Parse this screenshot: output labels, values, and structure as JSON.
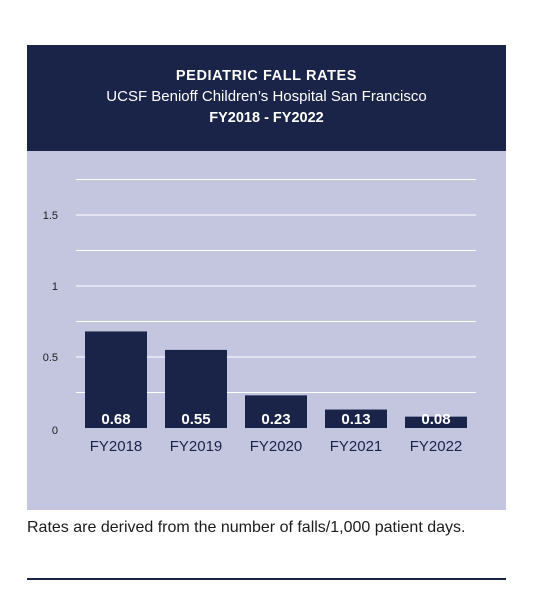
{
  "header": {
    "title": "PEDIATRIC FALL RATES",
    "subtitle": "UCSF Benioff Children’s Hospital San Francisco",
    "period": "FY2018 - FY2022"
  },
  "footnote": "Rates are derived from the number of falls/1,000 patient days.",
  "colors": {
    "navy": "#1a2348",
    "plot_bg": "#c4c6e0",
    "grid": "#ffffff"
  },
  "chart_data": {
    "type": "bar",
    "title": "PEDIATRIC FALL RATES",
    "subtitle": "UCSF Benioff Children’s Hospital San Francisco",
    "categories": [
      "FY2018",
      "FY2019",
      "FY2020",
      "FY2021",
      "FY2022"
    ],
    "values": [
      0.68,
      0.55,
      0.23,
      0.13,
      0.08
    ],
    "value_labels": [
      "0.68",
      "0.55",
      "0.23",
      "0.13",
      "0.08"
    ],
    "xlabel": "",
    "ylabel": "",
    "ylim": [
      0,
      1.75
    ],
    "yticks": [
      0,
      0.5,
      1,
      1.5
    ],
    "ytick_labels": [
      "0",
      "0.5",
      "1",
      "1.5"
    ],
    "grid": true,
    "legend": "none"
  }
}
